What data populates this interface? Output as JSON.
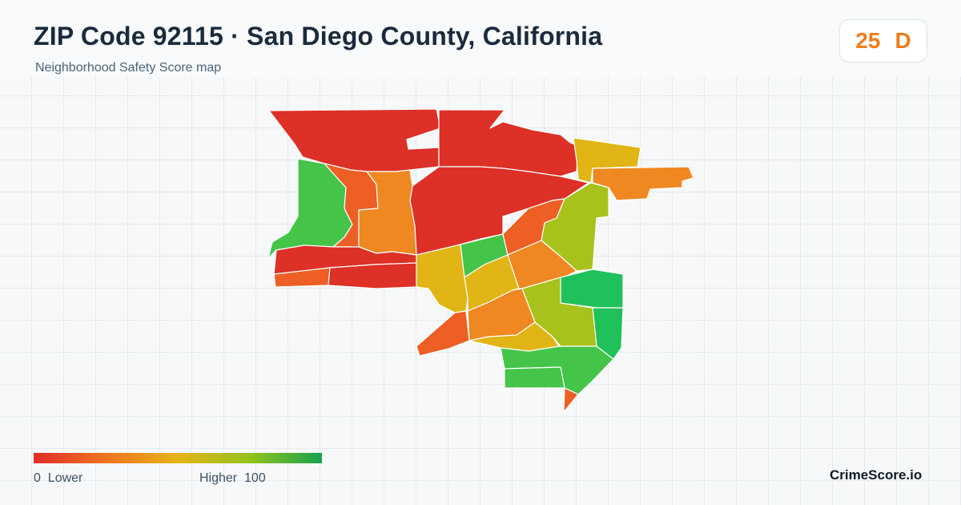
{
  "header": {
    "title": "ZIP Code 92115 · San Diego County, California",
    "subtitle": "Neighborhood Safety Score map"
  },
  "score": {
    "value": "25",
    "grade": "D",
    "color": "#ef7d1a"
  },
  "legend": {
    "min_label": "0",
    "low_label": "Lower",
    "high_label": "Higher",
    "max_label": "100",
    "colors": [
      "#e02d26",
      "#ee7420",
      "#e5b417",
      "#94c21a",
      "#16a24e"
    ]
  },
  "brand": {
    "name": "CrimeScore.io"
  },
  "map": {
    "region_colors": {
      "low": "#dd3027",
      "low_mid": "#ed5f24",
      "mid_low": "#ef8820",
      "mid": "#e0b515",
      "mid_high": "#a8c21c",
      "high": "#45c44a",
      "highest": "#20c05a"
    }
  }
}
